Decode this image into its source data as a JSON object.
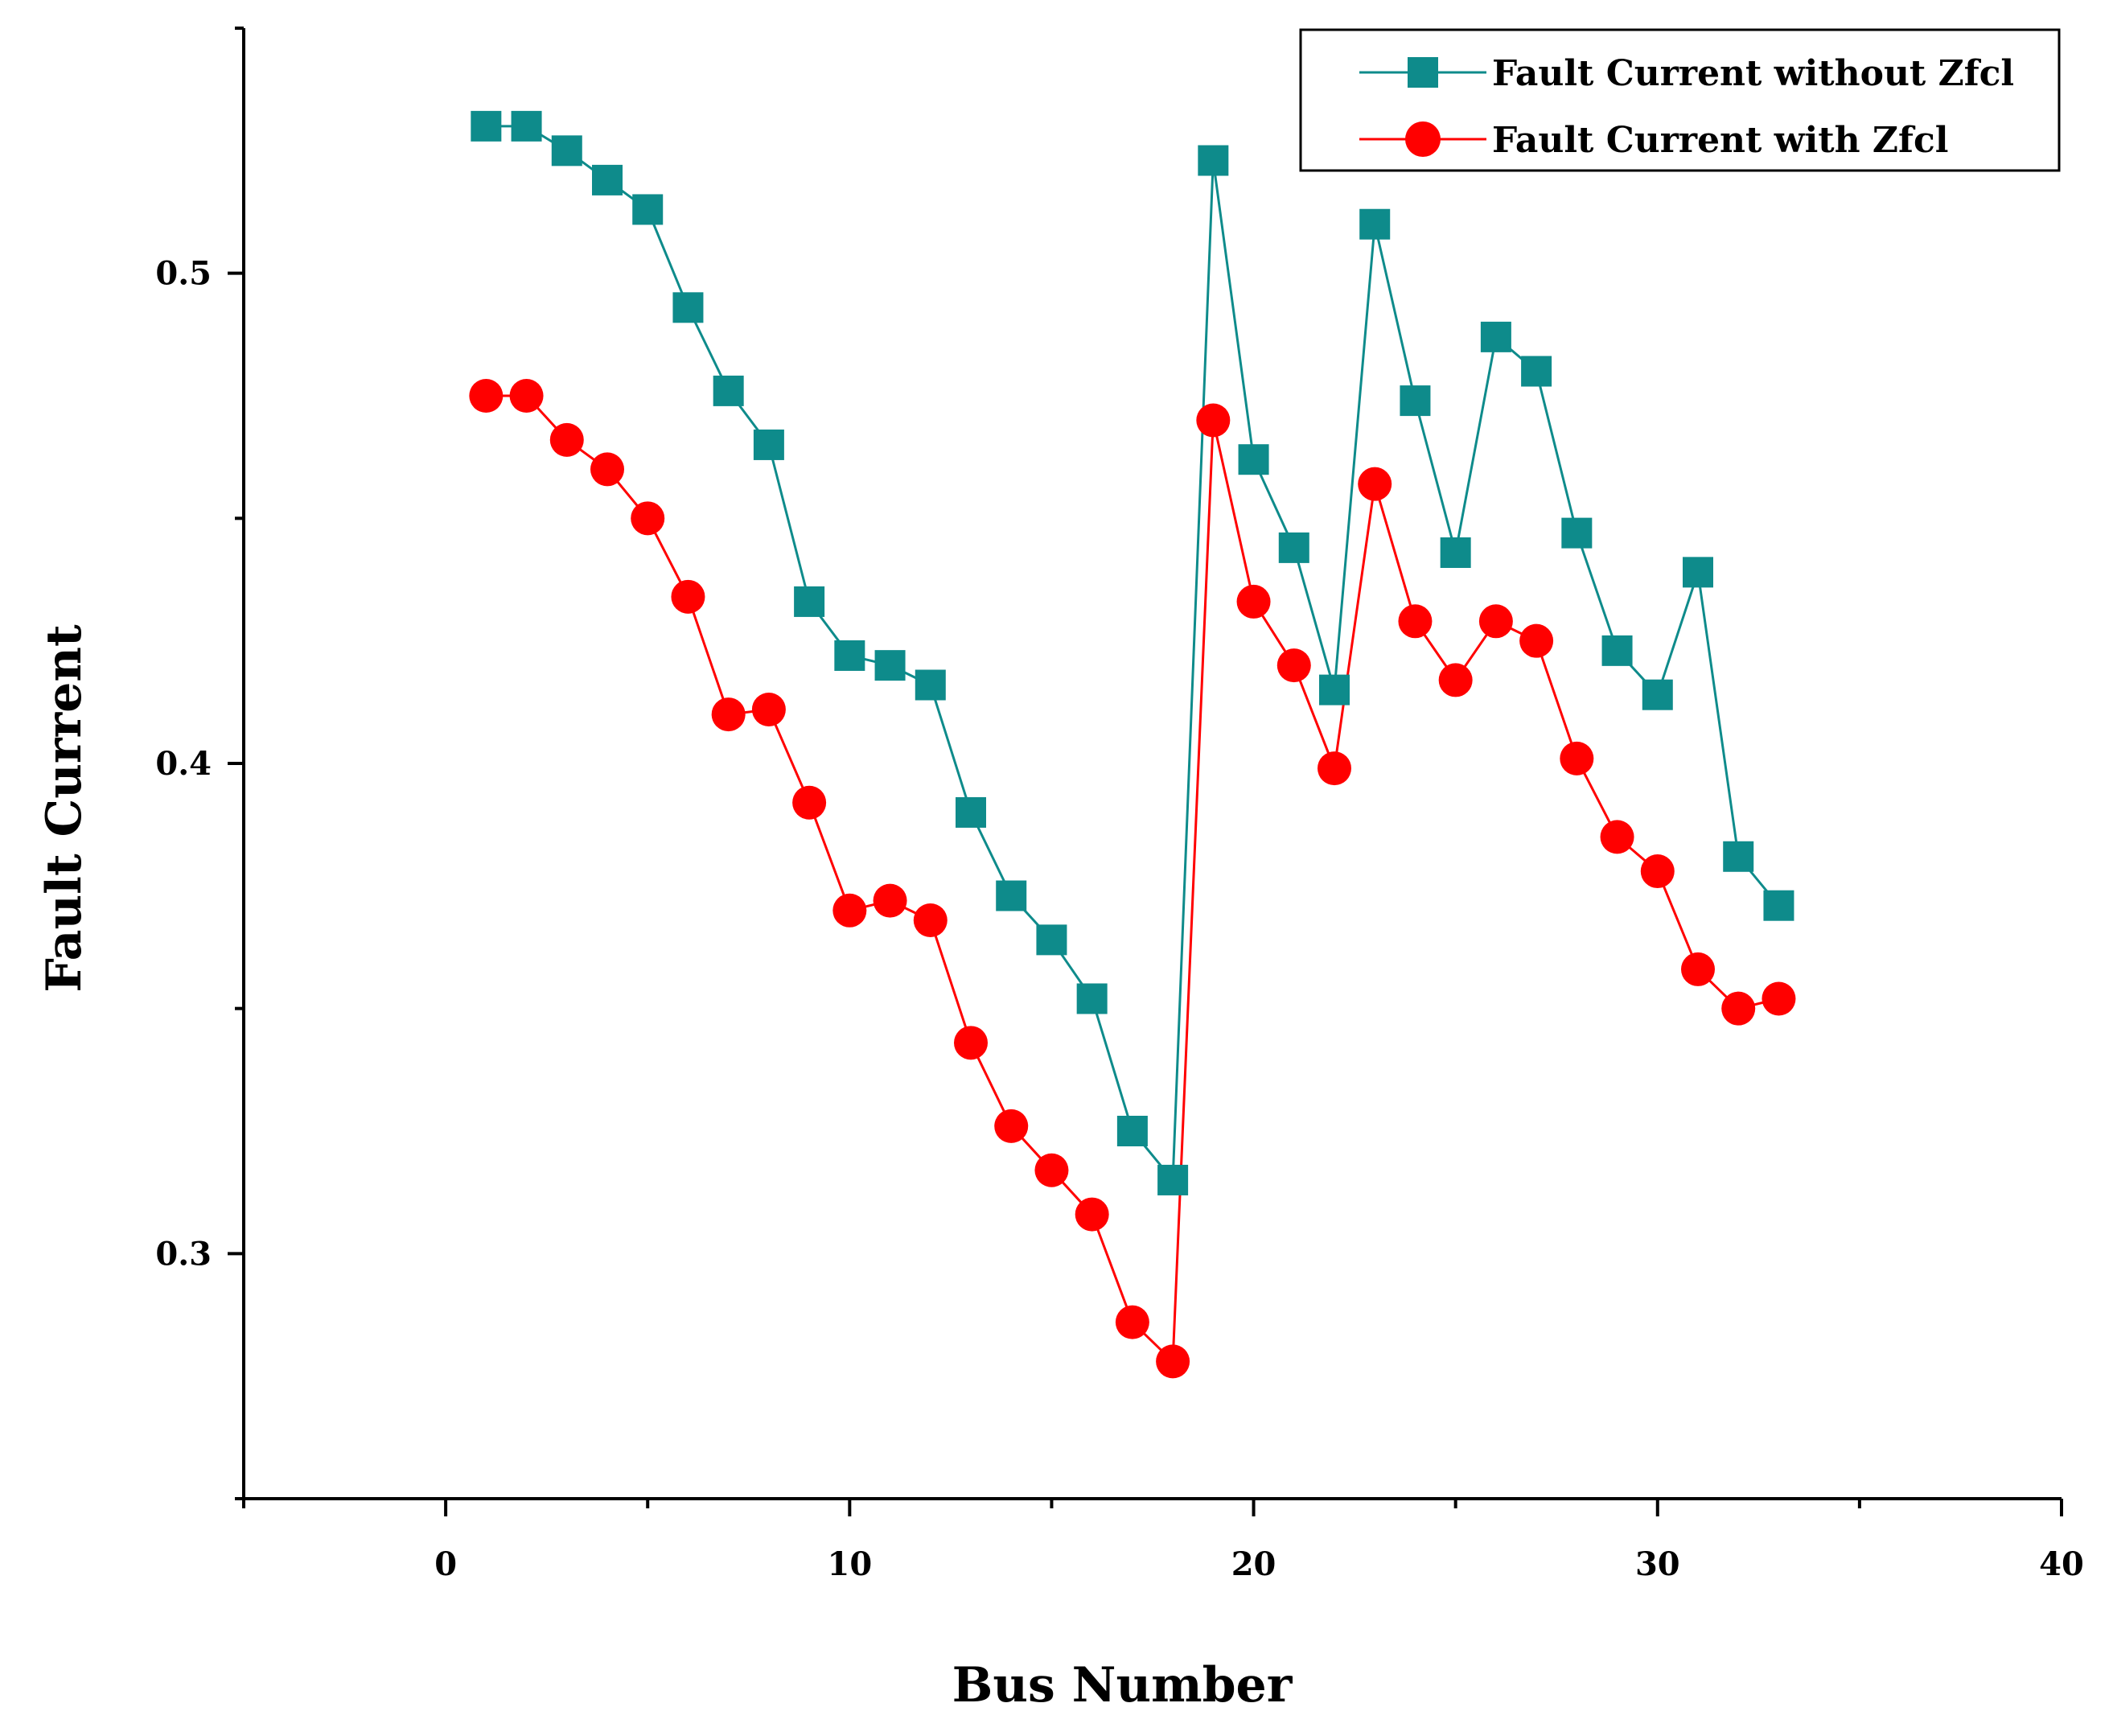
{
  "chart_data": {
    "type": "line",
    "title": "",
    "xlabel": "Bus Number",
    "ylabel": "Fault Current",
    "xlim": [
      -5,
      40
    ],
    "ylim": [
      0.25,
      0.55
    ],
    "x_ticks": [
      0,
      10,
      20,
      30,
      40
    ],
    "x_tick_labels": [
      "0",
      "10",
      "20",
      "30",
      "40"
    ],
    "y_ticks": [
      0.3,
      0.4,
      0.5
    ],
    "y_tick_labels": [
      "0.3",
      "0.4",
      "0.5"
    ],
    "grid": false,
    "legend_position": "top-right",
    "x": [
      1,
      2,
      3,
      4,
      5,
      6,
      7,
      8,
      9,
      10,
      11,
      12,
      13,
      14,
      15,
      16,
      17,
      18,
      19,
      20,
      21,
      22,
      23,
      24,
      25,
      26,
      27,
      28,
      29,
      30,
      31,
      32,
      33
    ],
    "series": [
      {
        "name": "Fault Current without Zfcl",
        "color": "#0e8b8b",
        "marker": "square",
        "values": [
          0.53,
          0.53,
          0.525,
          0.519,
          0.513,
          0.493,
          0.476,
          0.465,
          0.433,
          0.422,
          0.42,
          0.416,
          0.39,
          0.373,
          0.364,
          0.352,
          0.325,
          0.315,
          0.523,
          0.462,
          0.444,
          0.415,
          0.51,
          0.474,
          0.443,
          0.487,
          0.48,
          0.447,
          0.423,
          0.414,
          0.439,
          0.381,
          0.371
        ]
      },
      {
        "name": "Fault Current with Zfcl",
        "color": "#ff0000",
        "marker": "circle",
        "values": [
          0.475,
          0.475,
          0.466,
          0.46,
          0.45,
          0.434,
          0.41,
          0.411,
          0.392,
          0.37,
          0.372,
          0.368,
          0.343,
          0.326,
          0.317,
          0.308,
          0.286,
          0.278,
          0.47,
          0.433,
          0.42,
          0.399,
          0.457,
          0.429,
          0.417,
          0.429,
          0.425,
          0.401,
          0.385,
          0.378,
          0.358,
          0.35,
          0.352
        ]
      }
    ]
  }
}
